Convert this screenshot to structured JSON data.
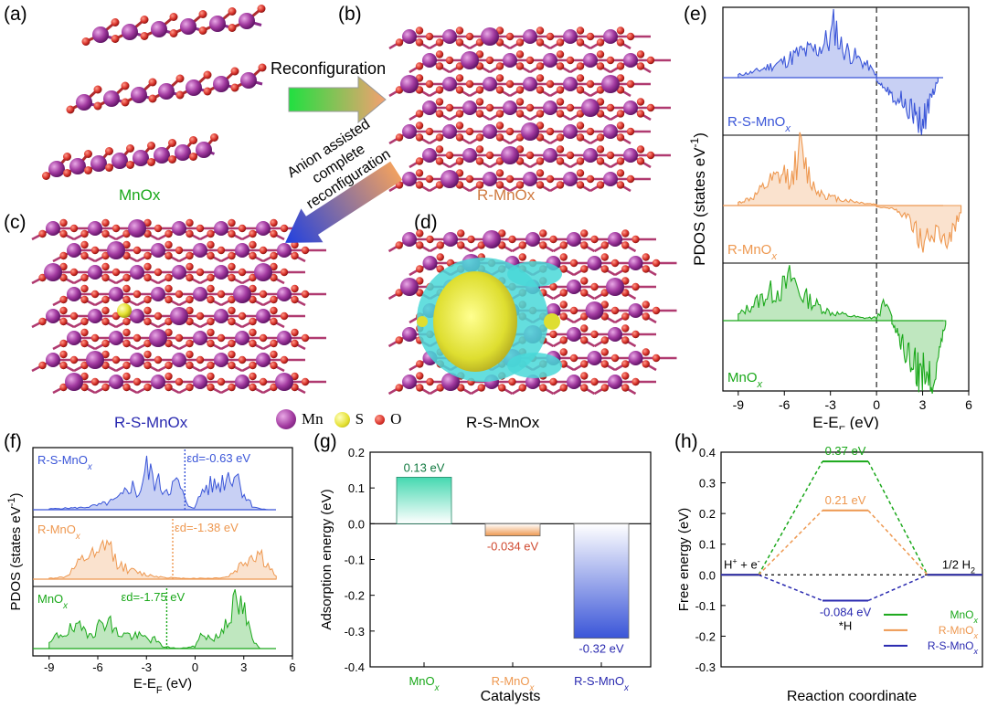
{
  "panel_letters": {
    "a": "(a)",
    "b": "(b)",
    "c": "(c)",
    "d": "(d)",
    "e": "(e)",
    "f": "(f)",
    "g": "(g)",
    "h": "(h)"
  },
  "structures": {
    "a_label": "MnOx",
    "b_label": "R-MnOx",
    "c_label": "R-S-MnOx",
    "d_label": "R-S-MnOx",
    "arrow1_text": "Reconfiguration",
    "arrow2_lines": [
      "Anion assisted",
      "complete",
      "reconfiguration"
    ],
    "legend": [
      {
        "symbol": "Mn",
        "color": "#a23aa0"
      },
      {
        "symbol": "S",
        "color": "#e4e030"
      },
      {
        "symbol": "O",
        "color": "#d8322a"
      }
    ]
  },
  "colors": {
    "blue": "#3a55d8",
    "orange": "#ee9850",
    "green": "#1aa81a",
    "darkblue": "#2a2ab0",
    "teal": "#45d8b0"
  },
  "chart_data": [
    {
      "id": "e",
      "type": "area",
      "title": "",
      "xlabel": "E-EF (eV)",
      "ylabel": "PDOS (states eV-1)",
      "xlim": [
        -10,
        6
      ],
      "xticks": [
        "-9",
        "-6",
        "-3",
        "0",
        "3",
        "6"
      ],
      "fermi_level": 0,
      "series": [
        {
          "name": "R-S-MnOx",
          "color": "#3a55d8",
          "up": {
            "x": [
              -9,
              -8,
              -7,
              -6,
              -5,
              -4,
              -3,
              -2.7,
              -2.4,
              -2,
              -1.5,
              -1,
              -0.5,
              0
            ],
            "y": [
              0.05,
              0.1,
              0.2,
              0.3,
              0.45,
              0.5,
              0.7,
              1.0,
              0.6,
              0.5,
              0.4,
              0.3,
              0.2,
              0.05
            ]
          },
          "down": {
            "x": [
              0,
              0.5,
              1,
              1.5,
              2,
              2.5,
              2.8,
              3.2,
              3.6,
              4
            ],
            "y": [
              0.05,
              0.15,
              0.3,
              0.4,
              0.5,
              0.7,
              0.95,
              0.7,
              0.3,
              0.05
            ]
          }
        },
        {
          "name": "R-MnOx",
          "color": "#ee9850",
          "up": {
            "x": [
              -9,
              -8,
              -7,
              -6,
              -5.5,
              -5,
              -4.5,
              -4,
              -3,
              -2,
              -1,
              0
            ],
            "y": [
              0.05,
              0.15,
              0.4,
              0.55,
              0.5,
              1.0,
              0.6,
              0.3,
              0.15,
              0.1,
              0.05,
              0.02
            ]
          },
          "down": {
            "x": [
              0,
              1,
              2,
              2.5,
              3,
              3.5,
              4,
              4.5,
              5,
              5.5
            ],
            "y": [
              0.02,
              0.05,
              0.2,
              0.4,
              0.7,
              0.6,
              0.5,
              0.6,
              0.45,
              0.1
            ]
          }
        },
        {
          "name": "MnOx",
          "color": "#1aa81a",
          "up": {
            "x": [
              -9,
              -8,
              -7,
              -6,
              -5.5,
              -5,
              -4,
              -3,
              -2,
              -1,
              0,
              0.5,
              1
            ],
            "y": [
              0.1,
              0.3,
              0.5,
              0.6,
              0.8,
              0.5,
              0.3,
              0.15,
              0.1,
              0.05,
              0.05,
              0.3,
              0.1
            ]
          },
          "down": {
            "x": [
              1,
              2,
              2.5,
              3,
              3.3,
              3.6,
              4,
              4.5
            ],
            "y": [
              0.05,
              0.6,
              0.8,
              1.0,
              0.85,
              1.0,
              0.6,
              0.05
            ]
          }
        }
      ]
    },
    {
      "id": "f",
      "type": "area",
      "xlabel": "E-EF (eV)",
      "ylabel": "PDOS (states eV-1)",
      "xlim": [
        -10,
        6
      ],
      "xticks": [
        "-9",
        "-6",
        "-3",
        "0",
        "3",
        "6"
      ],
      "series": [
        {
          "name": "R-S-MnOx",
          "color": "#3a55d8",
          "d_band_center": -0.63,
          "d_band_label": "εd=-0.63 eV",
          "x": [
            -9,
            -7,
            -6,
            -5,
            -4.5,
            -4,
            -3.5,
            -3,
            -2.5,
            -2,
            -1.5,
            -1,
            -0.5,
            0,
            0.5,
            1,
            1.5,
            2,
            2.5,
            3,
            3.5,
            4,
            4.5
          ],
          "y": [
            0.02,
            0.05,
            0.1,
            0.2,
            0.3,
            0.6,
            0.35,
            0.95,
            0.7,
            0.5,
            0.55,
            0.6,
            0.1,
            0.05,
            0.5,
            0.55,
            0.6,
            0.8,
            0.9,
            0.4,
            0.1,
            0.02,
            0.0
          ]
        },
        {
          "name": "R-MnOx",
          "color": "#ee9850",
          "d_band_center": -1.38,
          "d_band_label": "εd=-1.38 eV",
          "x": [
            -9,
            -8,
            -7,
            -6.5,
            -6,
            -5.5,
            -5,
            -4.5,
            -4,
            -3,
            -2,
            -1,
            0,
            1,
            2,
            2.5,
            3,
            3.5,
            4,
            4.5,
            5
          ],
          "y": [
            0.02,
            0.05,
            0.4,
            0.55,
            0.45,
            0.9,
            0.5,
            0.3,
            0.2,
            0.1,
            0.05,
            0.02,
            0.02,
            0.02,
            0.05,
            0.2,
            0.4,
            0.55,
            0.6,
            0.3,
            0.05
          ]
        },
        {
          "name": "MnOx",
          "color": "#1aa81a",
          "d_band_center": -1.75,
          "d_band_label": "εd=-1.75 eV",
          "x": [
            -9,
            -8.5,
            -8,
            -7,
            -6,
            -5.5,
            -5,
            -4.5,
            -4,
            -3,
            -2.5,
            -2,
            -1,
            0,
            0.5,
            1,
            1.5,
            2,
            2.5,
            3,
            3.5,
            4
          ],
          "y": [
            0.1,
            0.3,
            0.4,
            0.45,
            0.45,
            0.8,
            0.4,
            0.35,
            0.3,
            0.25,
            0.2,
            0.05,
            0.0,
            0.05,
            0.4,
            0.2,
            0.3,
            0.8,
            1.0,
            0.9,
            0.2,
            0.0
          ]
        }
      ]
    },
    {
      "id": "g",
      "type": "bar",
      "xlabel": "Catalysts",
      "ylabel": "Adsorption energy (eV)",
      "ylim": [
        -0.4,
        0.2
      ],
      "yticks": [
        "0.2",
        "0.1",
        "0.0",
        "-0.1",
        "-0.2",
        "-0.3",
        "-0.4"
      ],
      "categories": [
        "MnOx",
        "R-MnOx",
        "R-S-MnOx"
      ],
      "values": [
        0.13,
        -0.034,
        -0.32
      ],
      "value_labels": [
        "0.13 eV",
        "-0.034 eV",
        "-0.32 eV"
      ],
      "colors": [
        "#45d8b0",
        "#ee9850",
        "#3a55d8"
      ]
    },
    {
      "id": "h",
      "type": "line",
      "xlabel": "Reaction coordinate",
      "ylabel": "Free energy (eV)",
      "ylim": [
        -0.3,
        0.4
      ],
      "yticks": [
        "0.4",
        "0.3",
        "0.2",
        "0.1",
        "0.0",
        "-0.1",
        "-0.2",
        "-0.3"
      ],
      "states": [
        "H+ + e-",
        "*H",
        "1/2 H2"
      ],
      "series": [
        {
          "name": "MnOx",
          "color": "#1aa81a",
          "values": [
            0,
            0.37,
            0
          ],
          "label": "0.37 eV"
        },
        {
          "name": "R-MnOx",
          "color": "#ee9850",
          "values": [
            0,
            0.21,
            0
          ],
          "label": "0.21 eV"
        },
        {
          "name": "R-S-MnOx",
          "color": "#2a2ab0",
          "values": [
            0,
            -0.084,
            0
          ],
          "label": "-0.084 eV"
        }
      ],
      "legend_position": "bottom-right"
    }
  ]
}
